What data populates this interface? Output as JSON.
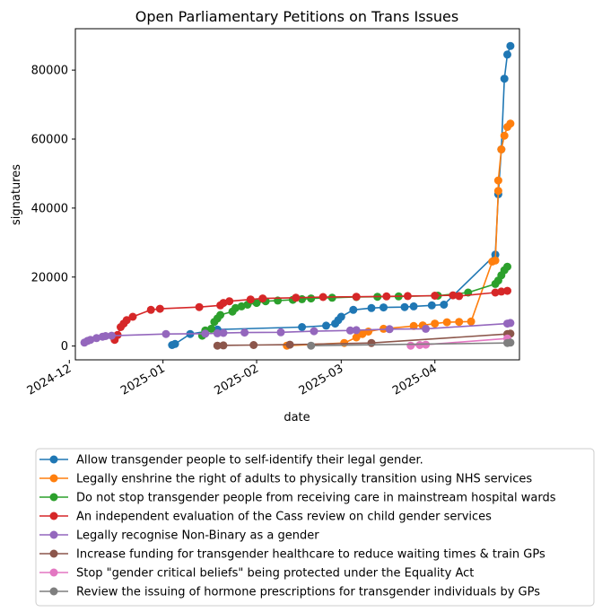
{
  "chart_data": {
    "type": "line",
    "title": "Open Parliamentary Petitions on Trans Issues",
    "xlabel": "date",
    "ylabel": "signatures",
    "x_type": "date",
    "xlim": [
      "2024-12-03",
      "2025-04-29"
    ],
    "ylim": [
      -4000,
      92000
    ],
    "x_ticks": [
      {
        "date": "2024-12-01",
        "label": "2024-12"
      },
      {
        "date": "2025-01-01",
        "label": "2025-01"
      },
      {
        "date": "2025-02-01",
        "label": "2025-02"
      },
      {
        "date": "2025-03-01",
        "label": "2025-03"
      },
      {
        "date": "2025-04-01",
        "label": "2025-04"
      }
    ],
    "y_ticks": [
      0,
      20000,
      40000,
      60000,
      80000
    ],
    "grid": false,
    "legend_position": "below",
    "series": [
      {
        "name": "Allow transgender people to self-identify their legal gender.",
        "color": "#1f77b4",
        "points": [
          [
            "2025-01-04",
            300
          ],
          [
            "2025-01-05",
            600
          ],
          [
            "2025-01-10",
            3500
          ],
          [
            "2025-01-19",
            4800
          ],
          [
            "2025-02-16",
            5500
          ],
          [
            "2025-02-24",
            5900
          ],
          [
            "2025-02-27",
            6500
          ],
          [
            "2025-02-28",
            7500
          ],
          [
            "2025-03-01",
            8500
          ],
          [
            "2025-03-05",
            10500
          ],
          [
            "2025-03-11",
            11000
          ],
          [
            "2025-03-15",
            11200
          ],
          [
            "2025-03-22",
            11300
          ],
          [
            "2025-03-25",
            11500
          ],
          [
            "2025-03-31",
            11800
          ],
          [
            "2025-04-04",
            12000
          ],
          [
            "2025-04-21",
            26500
          ],
          [
            "2025-04-22",
            44000
          ],
          [
            "2025-04-23",
            57000
          ],
          [
            "2025-04-24",
            77500
          ],
          [
            "2025-04-25",
            84500
          ],
          [
            "2025-04-26",
            87000
          ]
        ]
      },
      {
        "name": "Legally enshrine the right of adults to physically transition using NHS services",
        "color": "#ff7f0e",
        "points": [
          [
            "2025-02-11",
            100
          ],
          [
            "2025-03-02",
            900
          ],
          [
            "2025-03-06",
            2500
          ],
          [
            "2025-03-08",
            3500
          ],
          [
            "2025-03-10",
            4200
          ],
          [
            "2025-03-15",
            5000
          ],
          [
            "2025-03-25",
            5800
          ],
          [
            "2025-03-28",
            6000
          ],
          [
            "2025-04-01",
            6500
          ],
          [
            "2025-04-05",
            6900
          ],
          [
            "2025-04-09",
            7000
          ],
          [
            "2025-04-13",
            7100
          ],
          [
            "2025-04-20",
            24500
          ],
          [
            "2025-04-21",
            24800
          ],
          [
            "2025-04-22",
            45000
          ],
          [
            "2025-04-22",
            48000
          ],
          [
            "2025-04-23",
            57000
          ],
          [
            "2025-04-24",
            61000
          ],
          [
            "2025-04-25",
            63500
          ],
          [
            "2025-04-26",
            64500
          ]
        ]
      },
      {
        "name": "Do not stop transgender people from receiving care in mainstream hospital wards",
        "color": "#2ca02c",
        "points": [
          [
            "2025-01-14",
            3000
          ],
          [
            "2025-01-15",
            4500
          ],
          [
            "2025-01-17",
            5000
          ],
          [
            "2025-01-18",
            7000
          ],
          [
            "2025-01-19",
            8000
          ],
          [
            "2025-01-20",
            9000
          ],
          [
            "2025-01-24",
            10000
          ],
          [
            "2025-01-25",
            11000
          ],
          [
            "2025-01-27",
            11500
          ],
          [
            "2025-01-29",
            12000
          ],
          [
            "2025-02-01",
            12500
          ],
          [
            "2025-02-04",
            13000
          ],
          [
            "2025-02-08",
            13200
          ],
          [
            "2025-02-13",
            13400
          ],
          [
            "2025-02-16",
            13600
          ],
          [
            "2025-02-19",
            13800
          ],
          [
            "2025-02-26",
            14000
          ],
          [
            "2025-03-06",
            14200
          ],
          [
            "2025-03-13",
            14300
          ],
          [
            "2025-03-20",
            14400
          ],
          [
            "2025-04-02",
            14600
          ],
          [
            "2025-04-12",
            15500
          ],
          [
            "2025-04-21",
            18000
          ],
          [
            "2025-04-22",
            19000
          ],
          [
            "2025-04-23",
            20500
          ],
          [
            "2025-04-24",
            22000
          ],
          [
            "2025-04-25",
            23000
          ]
        ]
      },
      {
        "name": "An independent evaluation of the Cass review on child gender services",
        "color": "#d62728",
        "points": [
          [
            "2024-12-16",
            1800
          ],
          [
            "2024-12-17",
            3200
          ],
          [
            "2024-12-18",
            5500
          ],
          [
            "2024-12-19",
            6500
          ],
          [
            "2024-12-20",
            7500
          ],
          [
            "2024-12-22",
            8500
          ],
          [
            "2024-12-28",
            10500
          ],
          [
            "2024-12-31",
            10800
          ],
          [
            "2025-01-13",
            11300
          ],
          [
            "2025-01-20",
            11800
          ],
          [
            "2025-01-21",
            12500
          ],
          [
            "2025-01-23",
            13000
          ],
          [
            "2025-01-30",
            13500
          ],
          [
            "2025-02-03",
            13800
          ],
          [
            "2025-02-14",
            14000
          ],
          [
            "2025-02-23",
            14200
          ],
          [
            "2025-03-06",
            14300
          ],
          [
            "2025-03-16",
            14400
          ],
          [
            "2025-03-23",
            14500
          ],
          [
            "2025-04-01",
            14600
          ],
          [
            "2025-04-07",
            14700
          ],
          [
            "2025-04-09",
            14500
          ],
          [
            "2025-04-21",
            15500
          ],
          [
            "2025-04-23",
            15800
          ],
          [
            "2025-04-25",
            16000
          ]
        ]
      },
      {
        "name": "Legally recognise Non-Binary as a gender",
        "color": "#9467bd",
        "points": [
          [
            "2024-12-06",
            1000
          ],
          [
            "2024-12-07",
            1500
          ],
          [
            "2024-12-08",
            1800
          ],
          [
            "2024-12-10",
            2300
          ],
          [
            "2024-12-12",
            2700
          ],
          [
            "2024-12-13",
            2900
          ],
          [
            "2024-12-15",
            3000
          ],
          [
            "2025-01-02",
            3500
          ],
          [
            "2025-01-15",
            3600
          ],
          [
            "2025-01-19",
            3700
          ],
          [
            "2025-01-21",
            3800
          ],
          [
            "2025-01-28",
            3900
          ],
          [
            "2025-02-09",
            4000
          ],
          [
            "2025-02-20",
            4300
          ],
          [
            "2025-03-04",
            4500
          ],
          [
            "2025-03-06",
            4600
          ],
          [
            "2025-03-17",
            4900
          ],
          [
            "2025-03-29",
            5000
          ],
          [
            "2025-04-25",
            6500
          ],
          [
            "2025-04-26",
            6700
          ]
        ]
      },
      {
        "name": "Increase funding for transgender healthcare to reduce waiting times & train GPs",
        "color": "#8c564b",
        "points": [
          [
            "2025-01-19",
            100
          ],
          [
            "2025-01-21",
            200
          ],
          [
            "2025-01-31",
            300
          ],
          [
            "2025-02-12",
            400
          ],
          [
            "2025-03-11",
            900
          ],
          [
            "2025-04-25",
            3500
          ],
          [
            "2025-04-26",
            3600
          ]
        ]
      },
      {
        "name": "Stop \"gender critical beliefs\" being protected under the Equality Act",
        "color": "#e377c2",
        "points": [
          [
            "2025-03-24",
            100
          ],
          [
            "2025-03-27",
            300
          ],
          [
            "2025-03-29",
            400
          ],
          [
            "2025-04-25",
            2200
          ]
        ]
      },
      {
        "name": "Review the issuing of hormone prescriptions for transgender individuals by GPs",
        "color": "#7f7f7f",
        "points": [
          [
            "2025-02-19",
            100
          ],
          [
            "2025-04-25",
            900
          ],
          [
            "2025-04-26",
            1000
          ]
        ]
      }
    ]
  }
}
